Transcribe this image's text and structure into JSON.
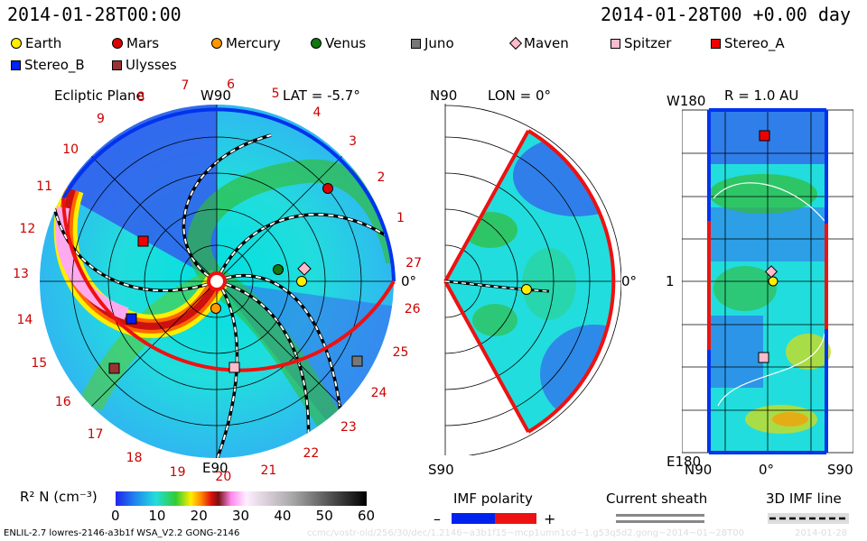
{
  "header": {
    "timestamp": "2014-01-28T00:00",
    "run_time": "2014-01-28T00 +0.00 day"
  },
  "legend": [
    {
      "name": "Earth",
      "shape": "circle",
      "color": "#ffee00"
    },
    {
      "name": "Mars",
      "shape": "circle",
      "color": "#dd0000"
    },
    {
      "name": "Mercury",
      "shape": "circle",
      "color": "#ff9900"
    },
    {
      "name": "Venus",
      "shape": "circle",
      "color": "#117711"
    },
    {
      "name": "Juno",
      "shape": "square",
      "color": "#777777"
    },
    {
      "name": "Maven",
      "shape": "diamond",
      "color": "#ffbbcc"
    },
    {
      "name": "Spitzer",
      "shape": "square",
      "color": "#ffbbcc"
    },
    {
      "name": "Stereo_A",
      "shape": "square",
      "color": "#ee0000"
    },
    {
      "name": "Stereo_B",
      "shape": "square",
      "color": "#0022ee"
    },
    {
      "name": "Ulysses",
      "shape": "square",
      "color": "#993333"
    }
  ],
  "ecliptic": {
    "title": "Ecliptic Plane",
    "lat_label": "LAT = -5.7°",
    "top_label": "W90",
    "bottom_label": "E90",
    "right_label": "0°",
    "day_labels": [
      "20",
      "21",
      "22",
      "23",
      "24",
      "25",
      "26",
      "27",
      "1",
      "2",
      "3",
      "4",
      "5",
      "6",
      "7",
      "8",
      "9",
      "10",
      "11",
      "12",
      "13",
      "14",
      "15",
      "16",
      "17",
      "18",
      "19"
    ]
  },
  "meridional": {
    "top_label": "N90",
    "title": "LON = 0°",
    "right_label": "0°",
    "bottom_label": "S90"
  },
  "radial": {
    "title": "R = 1.0 AU",
    "top_label": "W180",
    "mid_label": "1",
    "bottom_label": "E180",
    "x_left": "N90",
    "x_mid": "0°",
    "x_right": "S90"
  },
  "colorbar": {
    "label": "R² N (cm⁻³)",
    "ticks": [
      "0",
      "10",
      "20",
      "30",
      "40",
      "50",
      "60"
    ]
  },
  "imf": {
    "title": "IMF polarity",
    "minus": "–",
    "plus": "+"
  },
  "current_sheath": {
    "title": "Current sheath"
  },
  "imf_line": {
    "title": "3D IMF line"
  },
  "footer": {
    "model": "ENLIL-2.7 lowres-2146-a3b1f WSA_V2.2 GONG-2146",
    "path": "ccmc/vostr-old/256/30/dec/1.2146~a3b1f15~mcp1umn1cd~1.g53q5d2.gong~2014~01~28T00",
    "stamp": "2014-01-28"
  },
  "chart_data": [
    {
      "type": "heatmap",
      "title": "Ecliptic Plane",
      "quantity": "R² N (cm⁻³)",
      "scale_range": [
        0,
        60
      ],
      "lat": "-5.7°",
      "objects_present": [
        "Earth",
        "Mars",
        "Mercury",
        "Venus",
        "Juno",
        "Maven",
        "Spitzer",
        "Stereo_A",
        "Stereo_B",
        "Ulysses"
      ]
    },
    {
      "type": "heatmap",
      "title": "LON = 0°",
      "quantity": "R² N (cm⁻³)",
      "objects_present": [
        "Earth"
      ]
    },
    {
      "type": "heatmap",
      "title": "R = 1.0 AU",
      "quantity": "R² N (cm⁻³)",
      "objects_present": [
        "Stereo_A",
        "Maven",
        "Earth",
        "Spitzer"
      ]
    }
  ]
}
